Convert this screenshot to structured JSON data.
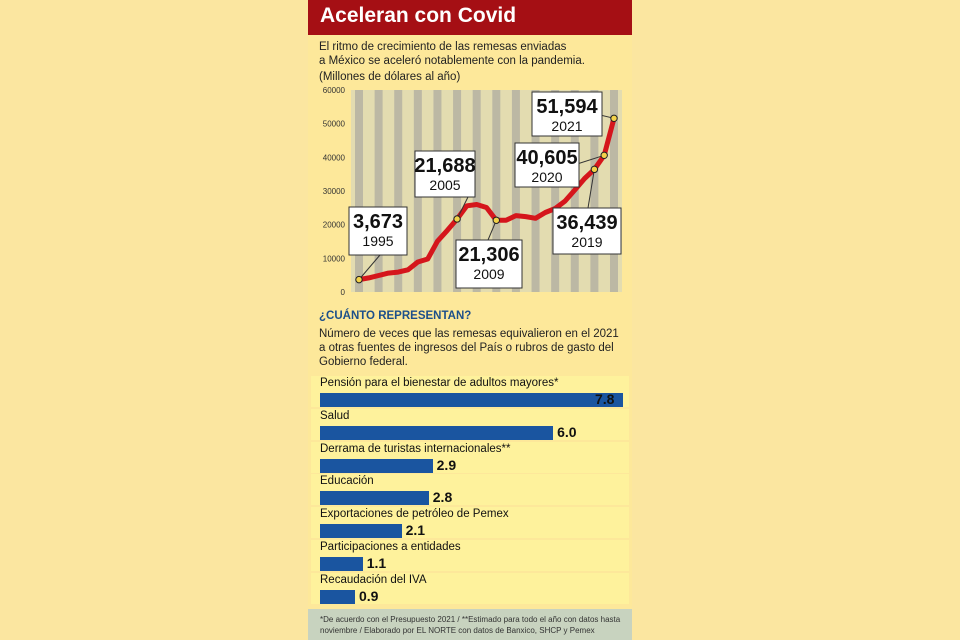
{
  "title": "Aceleran con Covid",
  "intro": {
    "line1": "El ritmo de crecimiento de las remesas enviadas",
    "line2": "a México se aceleró notablemente con la pandemia.",
    "unit": "(Millones de dólares al año)"
  },
  "chart_data": [
    {
      "type": "line",
      "unit": "(Millones de dólares al año)",
      "ylim": [
        0,
        60000
      ],
      "yticks": [
        "0",
        "10000",
        "20000",
        "30000",
        "40000",
        "50000",
        "60000"
      ],
      "grid": "vertical bands",
      "x": [
        1995,
        1996,
        1997,
        1998,
        1999,
        2000,
        2001,
        2002,
        2003,
        2004,
        2005,
        2006,
        2007,
        2008,
        2009,
        2010,
        2011,
        2012,
        2013,
        2014,
        2015,
        2016,
        2017,
        2018,
        2019,
        2020,
        2021
      ],
      "values": [
        3673,
        4200,
        4900,
        5600,
        5900,
        6600,
        8900,
        9800,
        15100,
        18300,
        21688,
        25600,
        26000,
        25100,
        21306,
        21300,
        22700,
        22400,
        21900,
        23600,
        24800,
        27000,
        30300,
        33700,
        36439,
        40605,
        51594
      ],
      "callouts": [
        {
          "value": "3,673",
          "year": "1995"
        },
        {
          "value": "21,688",
          "year": "2005"
        },
        {
          "value": "21,306",
          "year": "2009"
        },
        {
          "value": "40,605",
          "year": "2020"
        },
        {
          "value": "36,439",
          "year": "2019"
        },
        {
          "value": "51,594",
          "year": "2021"
        }
      ],
      "line_color": "#d5161c"
    },
    {
      "type": "bar",
      "orientation": "horizontal",
      "title": "¿CUÁNTO REPRESENTAN?",
      "description": [
        "Número de veces que las remesas equivalieron en el 2021",
        "a otras fuentes de ingresos del País o rubros de gasto del",
        "Gobierno federal."
      ],
      "categories": [
        "Pensión para el bienestar de adultos mayores*",
        "Salud",
        "Derrama de turistas internacionales**",
        "Educación",
        "Exportaciones de petróleo de Pemex",
        "Participaciones a entidades",
        "Recaudación del IVA"
      ],
      "values": [
        7.8,
        6.0,
        2.9,
        2.8,
        2.1,
        1.1,
        0.9
      ],
      "labels": [
        "7.8",
        "6.0",
        "2.9",
        "2.8",
        "2.1",
        "1.1",
        "0.9"
      ],
      "bar_color": "#1a55a0"
    }
  ],
  "footnote": {
    "line1": "*De acuerdo con el Presupuesto 2021 /  **Estimado para todo el año con datos hasta",
    "line2": "noviembre /  Elaborado por EL NORTE con datos de Banxico, SHCP y Pemex"
  },
  "colors": {
    "header": "#a50f14",
    "background": "#fde89a",
    "accent_blue": "#1a55a0",
    "line_red": "#d5161c"
  }
}
